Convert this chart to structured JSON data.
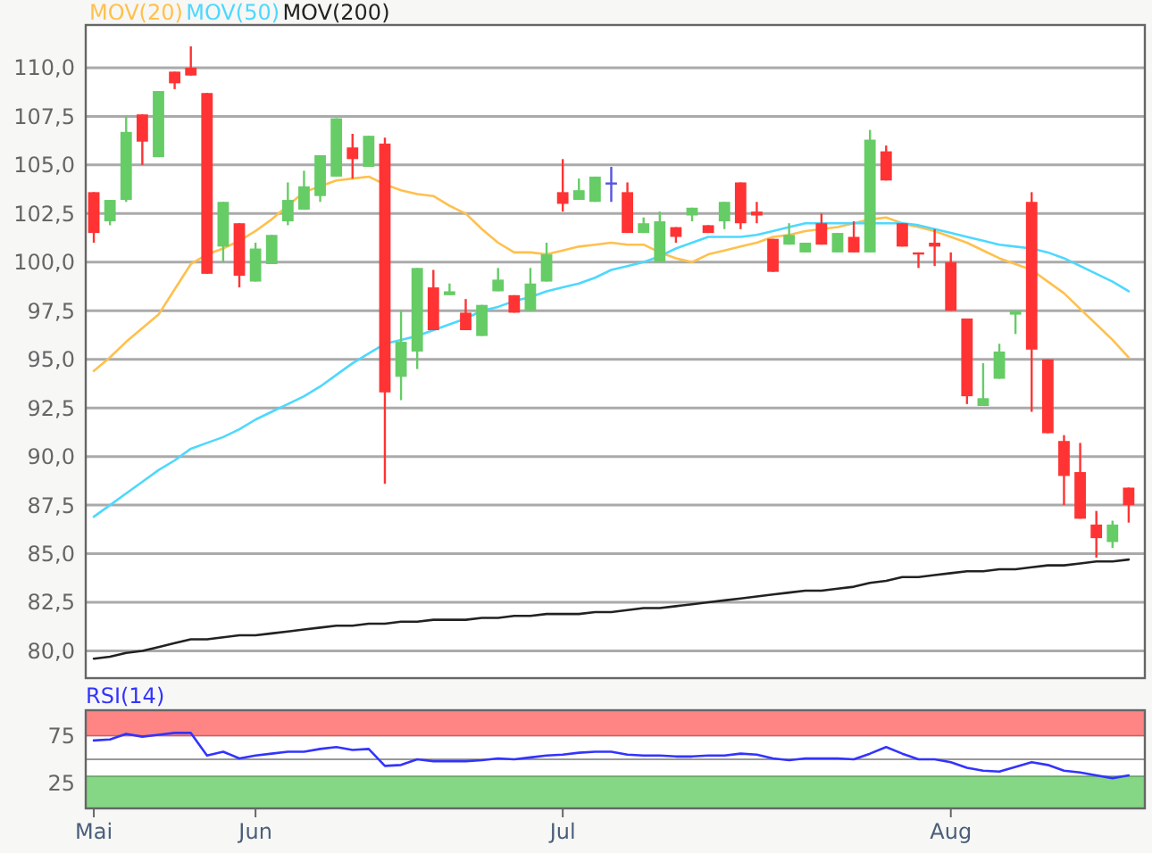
{
  "chart_data": [
    {
      "type": "candlestick",
      "categories": [
        null,
        null,
        null,
        null,
        null,
        null,
        null,
        null,
        null,
        null,
        null,
        null,
        null,
        null,
        null,
        null,
        null,
        null,
        null,
        null,
        null,
        null,
        null,
        null,
        null,
        null,
        null,
        null,
        null,
        null,
        null,
        null,
        null,
        null,
        null,
        null,
        null,
        null,
        null,
        null,
        null,
        null,
        null,
        null,
        null,
        null,
        null,
        null,
        null,
        null,
        null,
        null,
        null,
        null,
        null,
        null,
        null,
        null,
        null,
        null,
        null,
        null,
        null,
        null,
        null
      ],
      "ohlc": [
        [
          103.6,
          103.6,
          101.0,
          101.5
        ],
        [
          102.1,
          103.2,
          101.9,
          103.2
        ],
        [
          103.2,
          107.5,
          103.1,
          106.7
        ],
        [
          107.6,
          107.6,
          105.0,
          106.2
        ],
        [
          105.4,
          108.8,
          105.4,
          108.8
        ],
        [
          109.8,
          109.8,
          108.9,
          109.2
        ],
        [
          110.0,
          111.1,
          109.6,
          109.6
        ],
        [
          108.7,
          108.7,
          99.4,
          99.4
        ],
        [
          100.8,
          103.1,
          100.0,
          103.1
        ],
        [
          102.0,
          102.0,
          98.7,
          99.3
        ],
        [
          99.0,
          101.0,
          99.0,
          100.7
        ],
        [
          99.9,
          101.4,
          99.9,
          101.4
        ],
        [
          102.1,
          104.1,
          101.9,
          103.2
        ],
        [
          102.7,
          104.7,
          102.7,
          103.9
        ],
        [
          103.4,
          105.5,
          103.1,
          105.5
        ],
        [
          104.4,
          107.4,
          104.4,
          107.4
        ],
        [
          105.9,
          106.6,
          104.3,
          105.3
        ],
        [
          104.9,
          106.5,
          104.9,
          106.5
        ],
        [
          106.1,
          106.4,
          88.6,
          93.3
        ],
        [
          94.1,
          97.5,
          92.9,
          95.9
        ],
        [
          95.4,
          99.7,
          94.5,
          99.7
        ],
        [
          98.7,
          99.6,
          96.5,
          96.5
        ],
        [
          98.3,
          98.9,
          98.3,
          98.5
        ],
        [
          97.4,
          98.1,
          96.5,
          96.5
        ],
        [
          96.2,
          97.8,
          96.2,
          97.8
        ],
        [
          98.5,
          99.7,
          98.5,
          99.1
        ],
        [
          98.3,
          98.3,
          97.4,
          97.4
        ],
        [
          97.5,
          99.7,
          97.5,
          98.9
        ],
        [
          99.0,
          101.0,
          99.0,
          100.4
        ],
        [
          103.6,
          105.3,
          102.6,
          103.0
        ],
        [
          103.2,
          104.3,
          103.2,
          103.7
        ],
        [
          103.1,
          104.4,
          103.1,
          104.4
        ],
        [
          104.1,
          104.9,
          103.1,
          104.1
        ],
        [
          103.6,
          104.1,
          101.5,
          101.5
        ],
        [
          101.5,
          102.3,
          101.5,
          102.0
        ],
        [
          100.0,
          102.6,
          100.0,
          102.1
        ],
        [
          101.8,
          101.8,
          101.0,
          101.3
        ],
        [
          102.4,
          102.8,
          102.1,
          102.8
        ],
        [
          101.9,
          101.9,
          101.5,
          101.5
        ],
        [
          102.1,
          103.1,
          101.7,
          103.1
        ],
        [
          104.1,
          104.1,
          101.7,
          102.0
        ],
        [
          102.6,
          103.1,
          102.0,
          102.4
        ],
        [
          101.2,
          101.2,
          99.5,
          99.5
        ],
        [
          100.9,
          102.0,
          100.9,
          101.4
        ],
        [
          100.5,
          101.0,
          100.5,
          101.0
        ],
        [
          102.0,
          102.5,
          100.9,
          100.9
        ],
        [
          100.5,
          101.5,
          100.5,
          101.5
        ],
        [
          101.3,
          102.1,
          100.5,
          100.5
        ],
        [
          100.5,
          106.8,
          100.5,
          106.3
        ],
        [
          105.7,
          106.0,
          104.2,
          104.2
        ],
        [
          102.0,
          102.0,
          100.8,
          100.8
        ],
        [
          100.5,
          100.5,
          99.7,
          100.4
        ],
        [
          101.0,
          101.7,
          99.8,
          100.8
        ],
        [
          100.0,
          100.5,
          97.5,
          97.5
        ],
        [
          97.1,
          97.1,
          92.7,
          93.1
        ],
        [
          92.6,
          94.8,
          92.6,
          93.0
        ],
        [
          94.0,
          95.8,
          94.0,
          95.4
        ],
        [
          97.3,
          97.5,
          96.3,
          97.5
        ],
        [
          103.1,
          103.6,
          92.3,
          95.5
        ],
        [
          95.0,
          95.0,
          91.2,
          91.2
        ],
        [
          90.8,
          91.1,
          87.5,
          89.0
        ],
        [
          89.2,
          90.7,
          86.8,
          86.8
        ],
        [
          86.5,
          87.2,
          84.8,
          85.8
        ],
        [
          85.6,
          86.7,
          85.3,
          86.5
        ],
        [
          88.4,
          88.4,
          86.6,
          87.5
        ]
      ],
      "series": [
        {
          "name": "MOV(20)",
          "type": "line",
          "color": "#ffc04d",
          "values": [
            94.4,
            95.1,
            95.9,
            96.6,
            97.3,
            98.6,
            99.9,
            100.4,
            100.7,
            101.1,
            101.6,
            102.2,
            102.9,
            103.6,
            103.9,
            104.2,
            104.3,
            104.4,
            104.0,
            103.7,
            103.5,
            103.4,
            102.9,
            102.5,
            101.7,
            101.0,
            100.5,
            100.5,
            100.4,
            100.6,
            100.8,
            100.9,
            101.0,
            100.9,
            100.9,
            100.5,
            100.2,
            100.0,
            100.4,
            100.6,
            100.8,
            101.0,
            101.3,
            101.4,
            101.6,
            101.7,
            101.8,
            102.0,
            102.2,
            102.3,
            102.0,
            101.8,
            101.6,
            101.3,
            101.0,
            100.6,
            100.2,
            99.9,
            99.6,
            99.0,
            98.4,
            97.6,
            96.8,
            96.0,
            95.1
          ]
        },
        {
          "name": "MOV(50)",
          "type": "line",
          "color": "#4dd8ff",
          "values": [
            86.9,
            87.5,
            88.1,
            88.7,
            89.3,
            89.8,
            90.4,
            90.7,
            91.0,
            91.4,
            91.9,
            92.3,
            92.7,
            93.1,
            93.6,
            94.2,
            94.8,
            95.3,
            95.8,
            96.0,
            96.2,
            96.5,
            96.8,
            97.1,
            97.5,
            97.7,
            98.0,
            98.2,
            98.5,
            98.7,
            98.9,
            99.2,
            99.6,
            99.8,
            100.0,
            100.3,
            100.7,
            101.0,
            101.3,
            101.3,
            101.3,
            101.4,
            101.6,
            101.8,
            102.0,
            102.0,
            102.0,
            102.0,
            102.0,
            102.0,
            102.0,
            101.9,
            101.7,
            101.5,
            101.3,
            101.1,
            100.9,
            100.8,
            100.7,
            100.5,
            100.2,
            99.8,
            99.4,
            99.0,
            98.5
          ]
        },
        {
          "name": "MOV(200)",
          "type": "line",
          "color": "#222222",
          "values": [
            79.6,
            79.7,
            79.9,
            80.0,
            80.2,
            80.4,
            80.6,
            80.6,
            80.7,
            80.8,
            80.8,
            80.9,
            81.0,
            81.1,
            81.2,
            81.3,
            81.3,
            81.4,
            81.4,
            81.5,
            81.5,
            81.6,
            81.6,
            81.6,
            81.7,
            81.7,
            81.8,
            81.8,
            81.9,
            81.9,
            81.9,
            82.0,
            82.0,
            82.1,
            82.2,
            82.2,
            82.3,
            82.4,
            82.5,
            82.6,
            82.7,
            82.8,
            82.9,
            83.0,
            83.1,
            83.1,
            83.2,
            83.3,
            83.5,
            83.6,
            83.8,
            83.8,
            83.9,
            84.0,
            84.1,
            84.1,
            84.2,
            84.2,
            84.3,
            84.4,
            84.4,
            84.5,
            84.6,
            84.6,
            84.7
          ]
        }
      ],
      "ylim": [
        78.6,
        112.2
      ],
      "yticks": [
        {
          "value": 80,
          "label": "80,0"
        },
        {
          "value": 82.5,
          "label": "82,5"
        },
        {
          "value": 85,
          "label": "85,0"
        },
        {
          "value": 87.5,
          "label": "87,5"
        },
        {
          "value": 90,
          "label": "90,0"
        },
        {
          "value": 92.5,
          "label": "92,5"
        },
        {
          "value": 95,
          "label": "95,0"
        },
        {
          "value": 97.5,
          "label": "97,5"
        },
        {
          "value": 100,
          "label": "100,0"
        },
        {
          "value": 102.5,
          "label": "102,5"
        },
        {
          "value": 105,
          "label": "105,0"
        },
        {
          "value": 107.5,
          "label": "107,5"
        },
        {
          "value": 110,
          "label": "110,0"
        }
      ],
      "grid": "y",
      "legend": "top left",
      "tick_labels": "y"
    },
    {
      "type": "line",
      "title": "RSI(14)",
      "categories": [
        "Mai",
        null,
        null,
        null,
        null,
        null,
        null,
        null,
        null,
        null,
        "Jun",
        null,
        null,
        null,
        null,
        null,
        null,
        null,
        null,
        null,
        null,
        null,
        null,
        null,
        null,
        null,
        null,
        null,
        null,
        "Jul",
        null,
        null,
        null,
        null,
        null,
        null,
        null,
        null,
        null,
        null,
        null,
        null,
        null,
        null,
        null,
        null,
        null,
        null,
        null,
        null,
        null,
        null,
        null,
        "Aug",
        null,
        null,
        null,
        null,
        null,
        null,
        null,
        null,
        null,
        null,
        null
      ],
      "series": [
        {
          "color": "#3333ff",
          "values": [
            70,
            71,
            77,
            74,
            76,
            78,
            78,
            54,
            58,
            51,
            54,
            56,
            58,
            58,
            61,
            63,
            60,
            61,
            43,
            44,
            50,
            48,
            48,
            48,
            49,
            51,
            50,
            52,
            54,
            55,
            57,
            58,
            58,
            55,
            54,
            54,
            53,
            53,
            54,
            54,
            56,
            55,
            51,
            49,
            51,
            51,
            51,
            50,
            56,
            63,
            56,
            50,
            50,
            47,
            41,
            38,
            37,
            42,
            47,
            44,
            38,
            36,
            33,
            30,
            33
          ]
        }
      ],
      "ylim": [
        -2,
        102
      ],
      "yticks": [
        25,
        75
      ],
      "bands": [
        {
          "axis": "y",
          "from": 75,
          "to": 102,
          "color": "#ff8585"
        },
        {
          "axis": "y",
          "from": -2,
          "to": 32,
          "color": "#85d685"
        }
      ],
      "ref_lines": [
        {
          "axis": "y",
          "value": 50,
          "color": "#999999"
        }
      ]
    }
  ]
}
